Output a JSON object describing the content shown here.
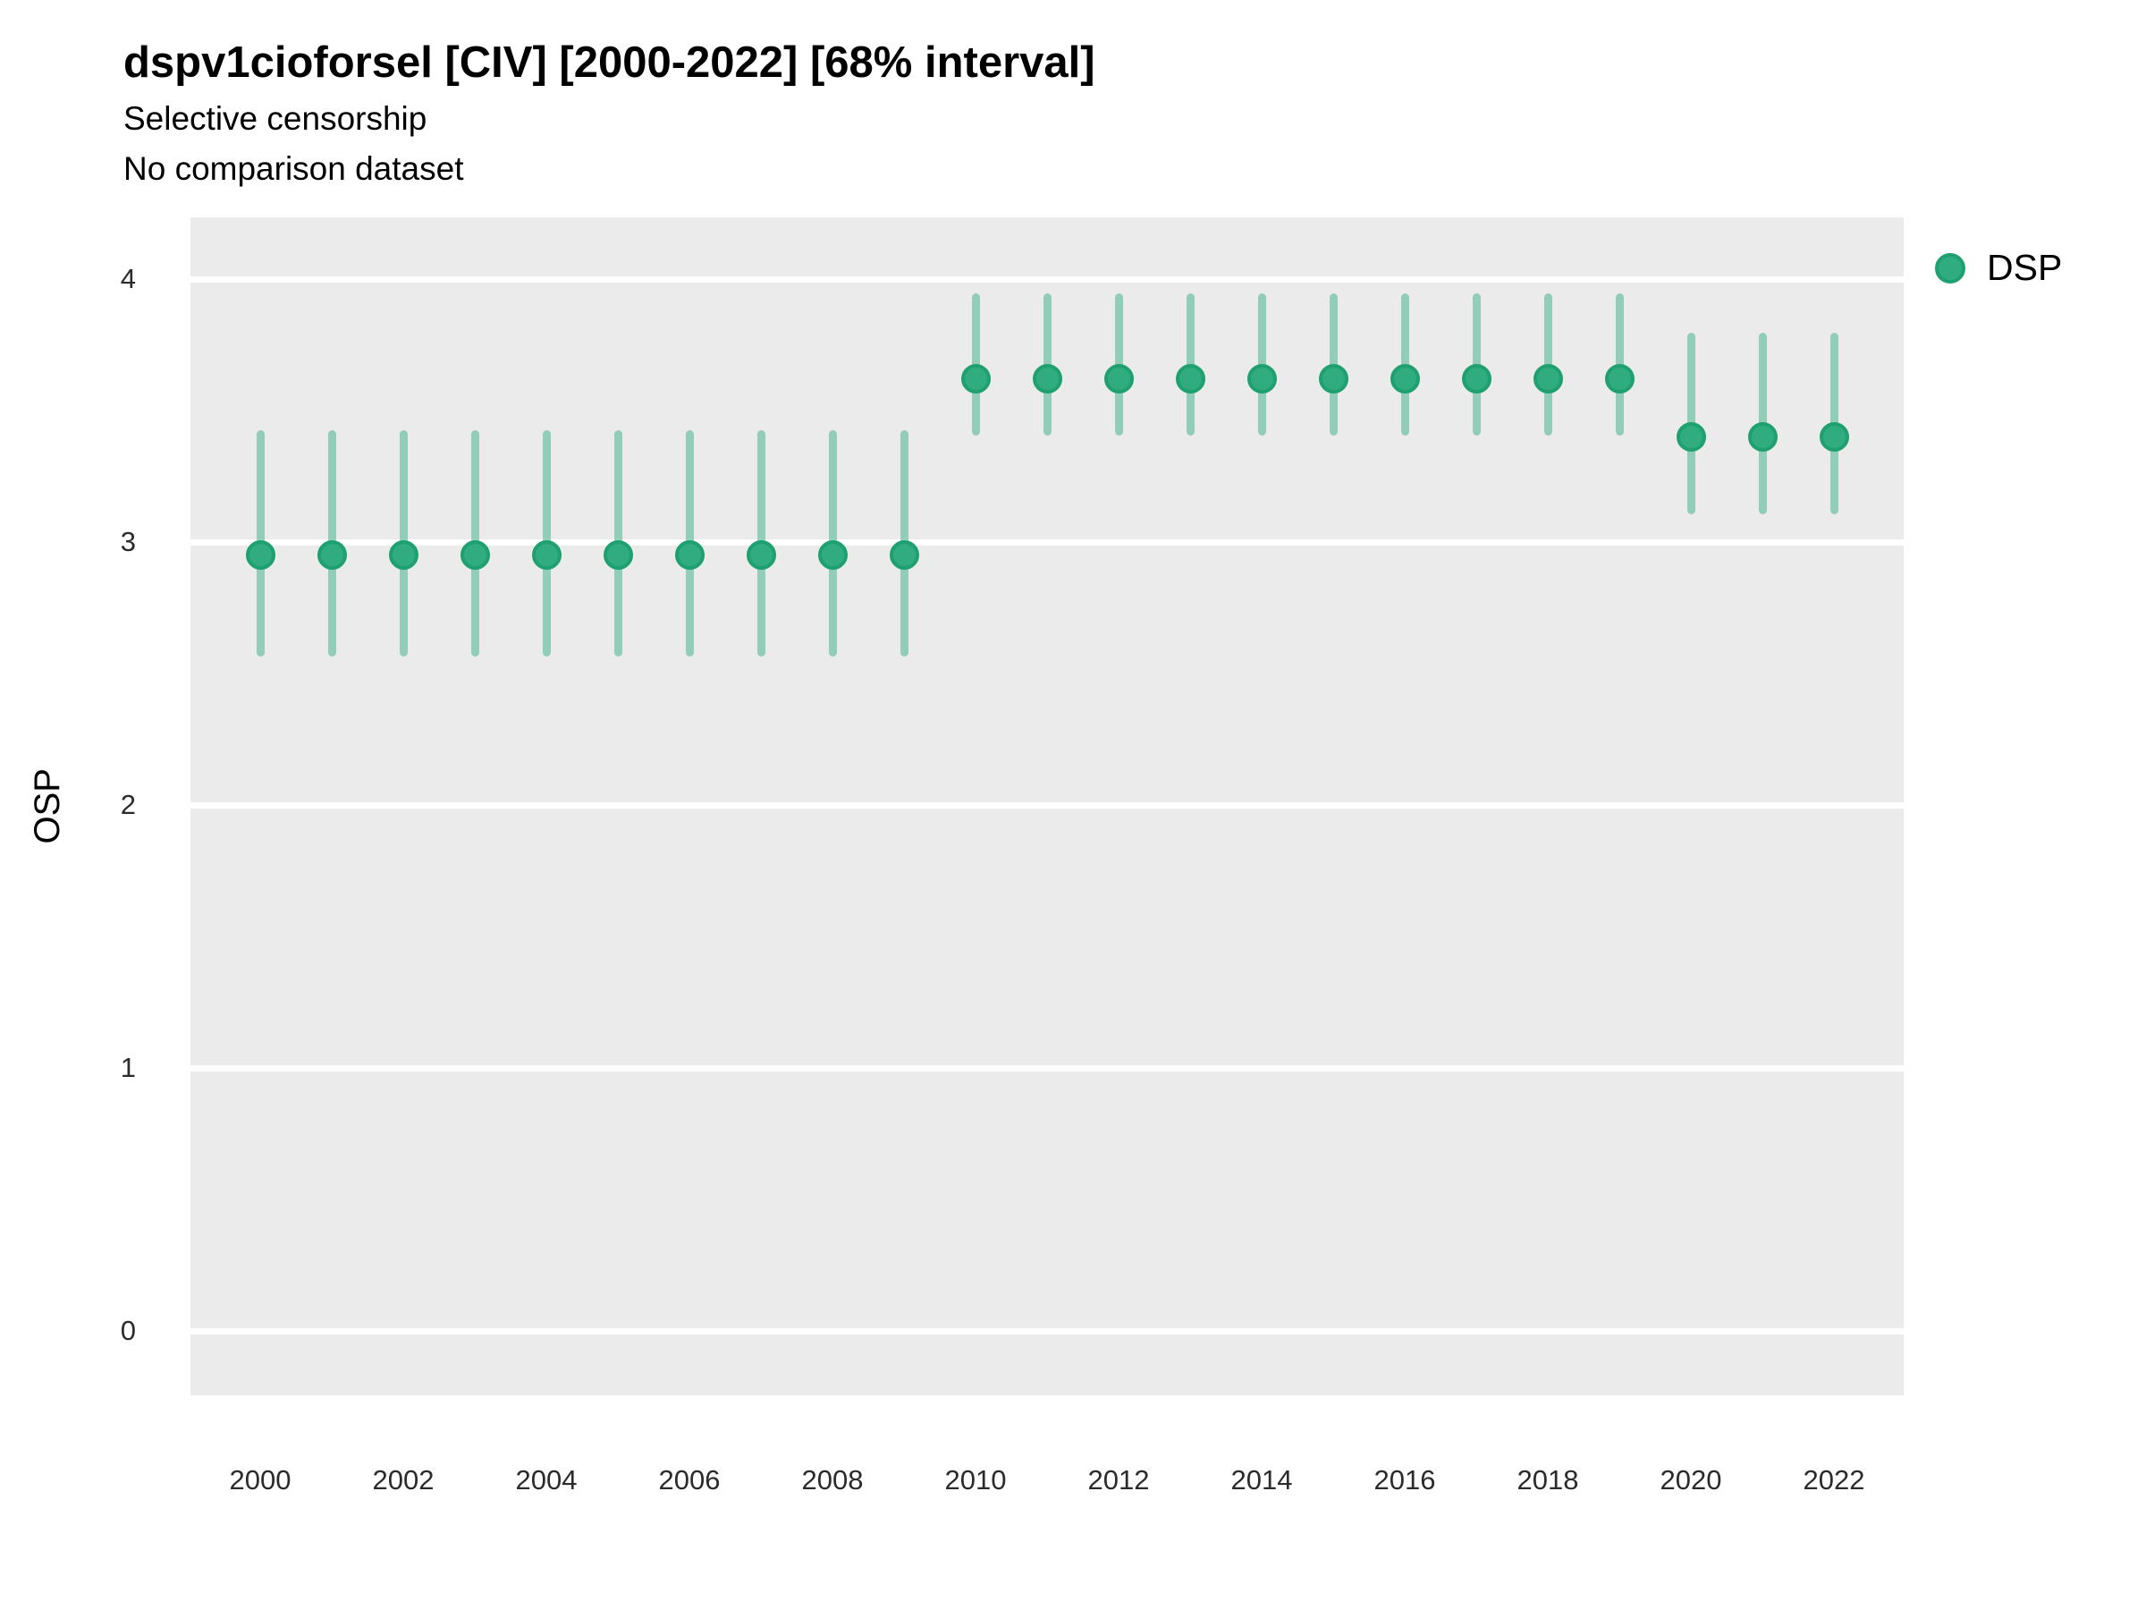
{
  "title": "dspv1cioforsel [CIV] [2000-2022] [68% interval]",
  "subtitle_line1": "Selective censorship",
  "subtitle_line2": "No comparison dataset",
  "y_axis_label": "OSP",
  "legend": {
    "position": "right",
    "items": [
      {
        "label": "DSP",
        "color": "#30AC80"
      }
    ]
  },
  "colors": {
    "point_fill": "#30AC80",
    "point_stroke": "#1FA070",
    "interval_bar": "rgba(47,172,129,0.48)",
    "panel_background": "#EBEBEB",
    "gridline": "#FFFFFF"
  },
  "chart_data": {
    "type": "scatter",
    "variant": "pointrange",
    "title": "dspv1cioforsel [CIV] [2000-2022] [68% interval]",
    "subtitle": [
      "Selective censorship",
      "No comparison dataset"
    ],
    "interval_label": "68% interval",
    "xlabel": "",
    "ylabel": "OSP",
    "grid": "horizontal-major-only",
    "legend_position": "right",
    "x_ticks": [
      2000,
      2002,
      2004,
      2006,
      2008,
      2010,
      2012,
      2014,
      2016,
      2018,
      2020,
      2022
    ],
    "y_ticks": [
      0,
      1,
      2,
      3,
      4
    ],
    "xlim": [
      1999,
      2023
    ],
    "ylim": [
      -0.25,
      4.24
    ],
    "series": [
      {
        "name": "DSP",
        "color": "#30AC80",
        "x": [
          2000,
          2001,
          2002,
          2003,
          2004,
          2005,
          2006,
          2007,
          2008,
          2009,
          2010,
          2011,
          2012,
          2013,
          2014,
          2015,
          2016,
          2017,
          2018,
          2019,
          2020,
          2021,
          2022
        ],
        "y": [
          2.95,
          2.95,
          2.95,
          2.95,
          2.95,
          2.95,
          2.95,
          2.95,
          2.95,
          2.95,
          3.62,
          3.62,
          3.62,
          3.62,
          3.62,
          3.62,
          3.62,
          3.62,
          3.62,
          3.62,
          3.4,
          3.4,
          3.4
        ],
        "y_lo": [
          2.58,
          2.58,
          2.58,
          2.58,
          2.58,
          2.58,
          2.58,
          2.58,
          2.58,
          2.58,
          3.42,
          3.42,
          3.42,
          3.42,
          3.42,
          3.42,
          3.42,
          3.42,
          3.42,
          3.42,
          3.12,
          3.12,
          3.12
        ],
        "y_hi": [
          3.41,
          3.41,
          3.41,
          3.41,
          3.41,
          3.41,
          3.41,
          3.41,
          3.41,
          3.41,
          3.93,
          3.93,
          3.93,
          3.93,
          3.93,
          3.93,
          3.93,
          3.93,
          3.93,
          3.93,
          3.78,
          3.78,
          3.78
        ]
      }
    ]
  }
}
